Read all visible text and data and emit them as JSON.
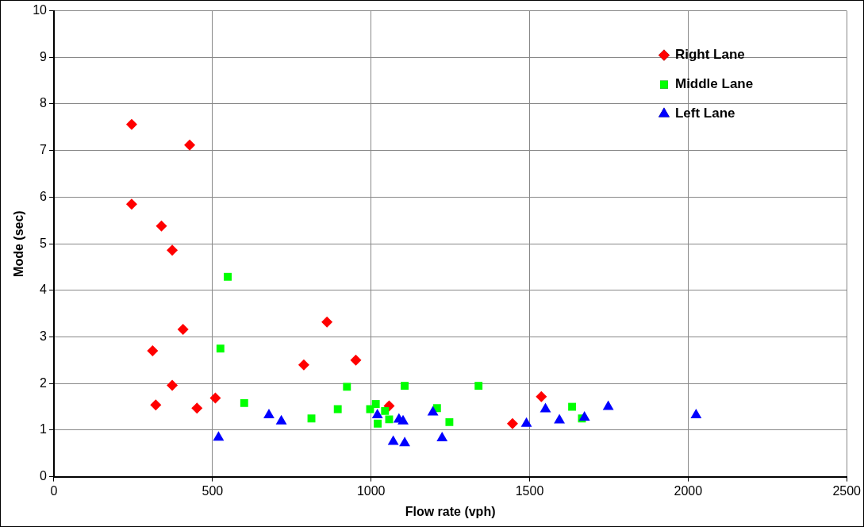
{
  "chart_data": {
    "type": "scatter",
    "xlabel": "Flow rate (vph)",
    "ylabel": "Mode (sec)",
    "xlim": [
      0,
      2500
    ],
    "xticks": [
      0,
      500,
      1000,
      1500,
      2000,
      2500
    ],
    "ylim": [
      0,
      10
    ],
    "yticks": [
      0,
      1,
      2,
      3,
      4,
      5,
      6,
      7,
      8,
      9,
      10
    ],
    "grid": true,
    "legend": "top right",
    "series": [
      {
        "name": "Right Lane",
        "color": "#ff0000",
        "marker": "diamond",
        "x": [
          245,
          428,
          245,
          339,
          373,
          407,
          311,
          373,
          321,
          451,
          509,
          788,
          861,
          952,
          1057,
          1446,
          1537
        ],
        "values": [
          7.56,
          7.12,
          5.85,
          5.38,
          4.86,
          3.16,
          2.7,
          1.96,
          1.54,
          1.47,
          1.69,
          2.4,
          3.32,
          2.5,
          1.52,
          1.14,
          1.72
        ]
      },
      {
        "name": "Middle Lane",
        "color": "#00ff00",
        "marker": "square",
        "x": [
          548,
          525,
          600,
          812,
          895,
          924,
          997,
          1015,
          1044,
          1021,
          1057,
          1106,
          1208,
          1247,
          1339,
          1634,
          1665
        ],
        "values": [
          4.29,
          2.75,
          1.58,
          1.25,
          1.45,
          1.93,
          1.45,
          1.56,
          1.41,
          1.14,
          1.23,
          1.95,
          1.47,
          1.17,
          1.95,
          1.5,
          1.25
        ]
      },
      {
        "name": "Left Lane",
        "color": "#0000ff",
        "marker": "triangle",
        "x": [
          519,
          678,
          717,
          1020,
          1088,
          1101,
          1070,
          1106,
          1195,
          1224,
          1490,
          1550,
          1594,
          1673,
          1748,
          2025
        ],
        "values": [
          0.84,
          1.32,
          1.19,
          1.32,
          1.23,
          1.19,
          0.75,
          0.72,
          1.38,
          0.83,
          1.14,
          1.45,
          1.21,
          1.27,
          1.5,
          1.32
        ]
      }
    ]
  }
}
